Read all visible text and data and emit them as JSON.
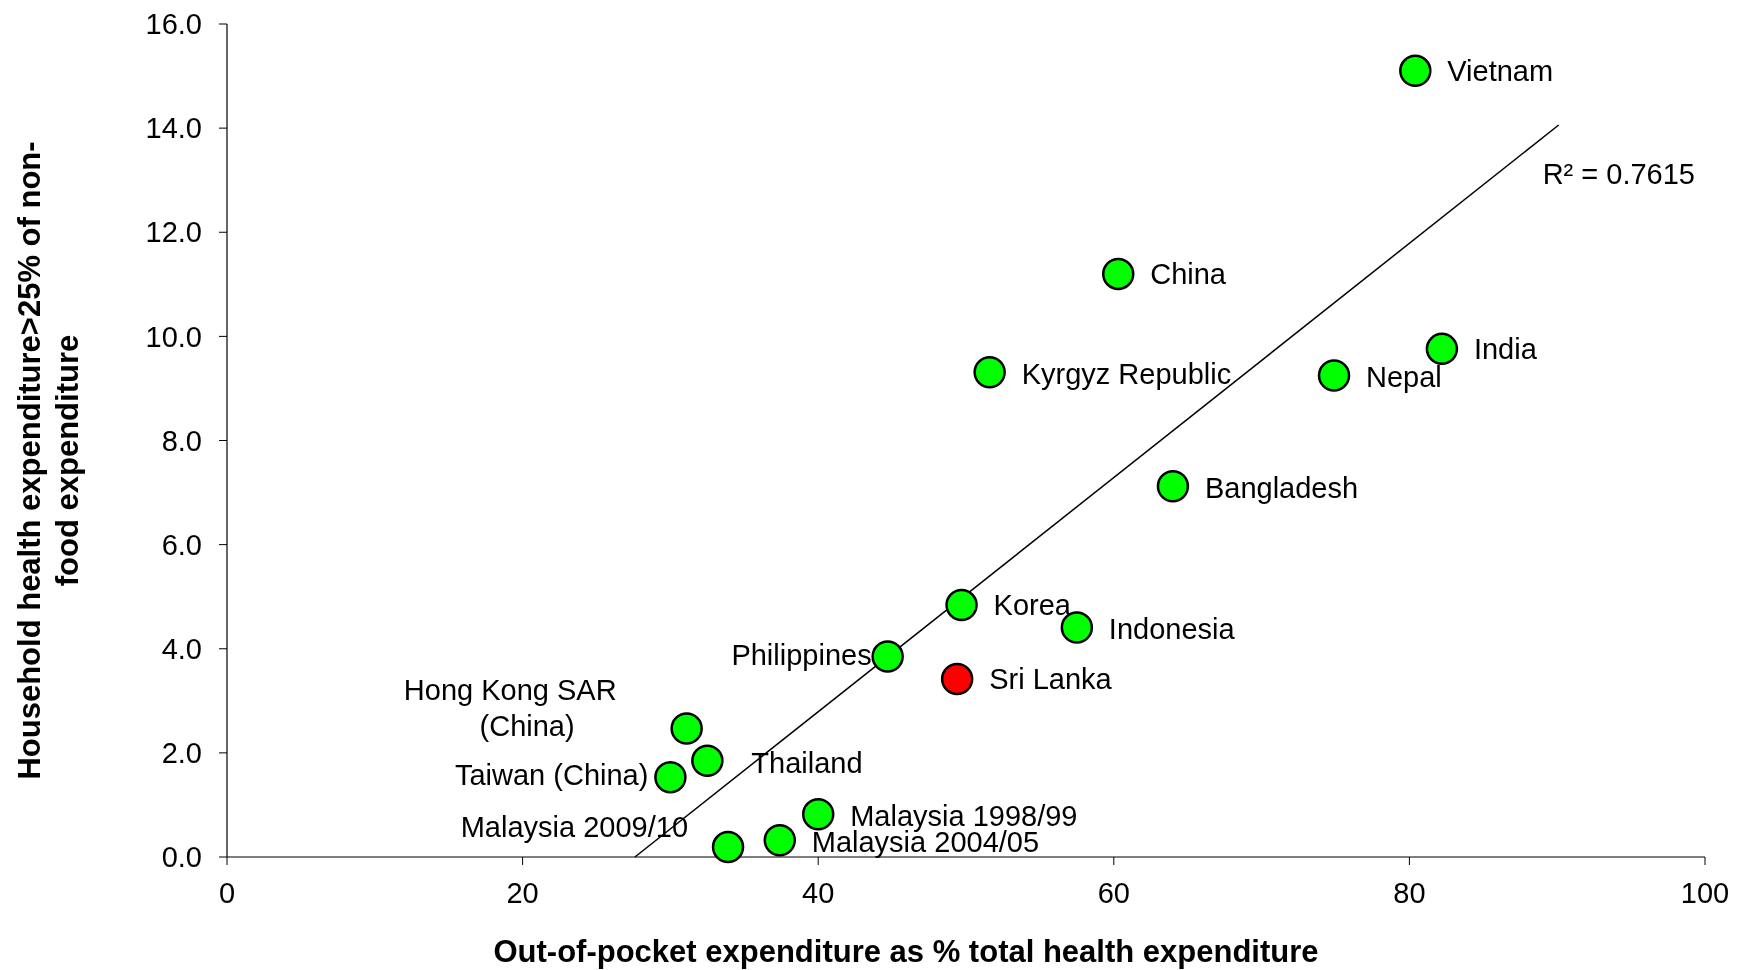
{
  "chart_data": {
    "type": "scatter",
    "xlabel": "Out-of-pocket expenditure as % total health expenditure",
    "ylabel": "Household health expenditure>25% of non-\nfood expenditure",
    "xlim": [
      0,
      100
    ],
    "xticks": [
      0,
      20,
      40,
      60,
      80,
      100
    ],
    "ylim": [
      0,
      16
    ],
    "yticks": [
      {
        "value": 0,
        "label": "0.0"
      },
      {
        "value": 2,
        "label": "2.0"
      },
      {
        "value": 4,
        "label": "4.0"
      },
      {
        "value": 6,
        "label": "6.0"
      },
      {
        "value": 8,
        "label": "8.0"
      },
      {
        "value": 10,
        "label": "10.0"
      },
      {
        "value": 12,
        "label": "12.0"
      },
      {
        "value": 14,
        "label": "14.0"
      },
      {
        "value": 16,
        "label": "16.0"
      }
    ],
    "grid": false,
    "marker": "circle",
    "series": [
      {
        "x": [
          80.4,
          60.3,
          82.2,
          74.9,
          51.6,
          64.0,
          49.7,
          57.5,
          44.7,
          49.4,
          31.1,
          32.5,
          30.0,
          40.0,
          37.4,
          33.9
        ],
        "values": [
          15.1,
          11.2,
          9.76,
          9.25,
          9.31,
          7.12,
          4.84,
          4.41,
          3.85,
          3.42,
          2.47,
          1.85,
          1.53,
          0.82,
          0.32,
          0.19
        ],
        "colors": [
          "#00ff00",
          "#00ff00",
          "#00ff00",
          "#00ff00",
          "#00ff00",
          "#00ff00",
          "#00ff00",
          "#00ff00",
          "#00ff00",
          "#ff0000",
          "#00ff00",
          "#00ff00",
          "#00ff00",
          "#00ff00",
          "#00ff00",
          "#00ff00"
        ]
      },
      {
        "type": "line",
        "x": [
          27.6,
          90.1
        ],
        "values": [
          0,
          14.06
        ],
        "color": "#000000",
        "marker": "none",
        "line_style": "solid"
      }
    ],
    "annotations": [
      {
        "text": "Vietnam",
        "x": 80.4,
        "y": 15.1
      },
      {
        "text": "China",
        "x": 60.3,
        "y": 11.2
      },
      {
        "text": "India",
        "x": 82.2,
        "y": 9.76
      },
      {
        "text": "Nepal",
        "x": 74.9,
        "y": 9.25
      },
      {
        "text": "Kyrgyz Republic",
        "x": 51.6,
        "y": 9.31
      },
      {
        "text": "Bangladesh",
        "x": 64.0,
        "y": 7.12
      },
      {
        "text": "Korea",
        "x": 49.7,
        "y": 4.84
      },
      {
        "text": "Indonesia",
        "x": 57.5,
        "y": 4.41
      },
      {
        "text": "Philippines",
        "x": 44.7,
        "y": 3.85
      },
      {
        "text": "Sri Lanka",
        "x": 49.4,
        "y": 3.42
      },
      {
        "text": "Hong Kong SAR\n(China)",
        "x": 31.1,
        "y": 2.47
      },
      {
        "text": "Thailand",
        "x": 32.5,
        "y": 1.85
      },
      {
        "text": "Taiwan (China)",
        "x": 30.0,
        "y": 1.53
      },
      {
        "text": "Malaysia 1998/99",
        "x": 40.0,
        "y": 0.82
      },
      {
        "text": "Malaysia 2004/05",
        "x": 37.4,
        "y": 0.32
      },
      {
        "text": "Malaysia 2009/10",
        "x": 33.9,
        "y": 0.19
      },
      "R² = 0.7615"
    ]
  }
}
